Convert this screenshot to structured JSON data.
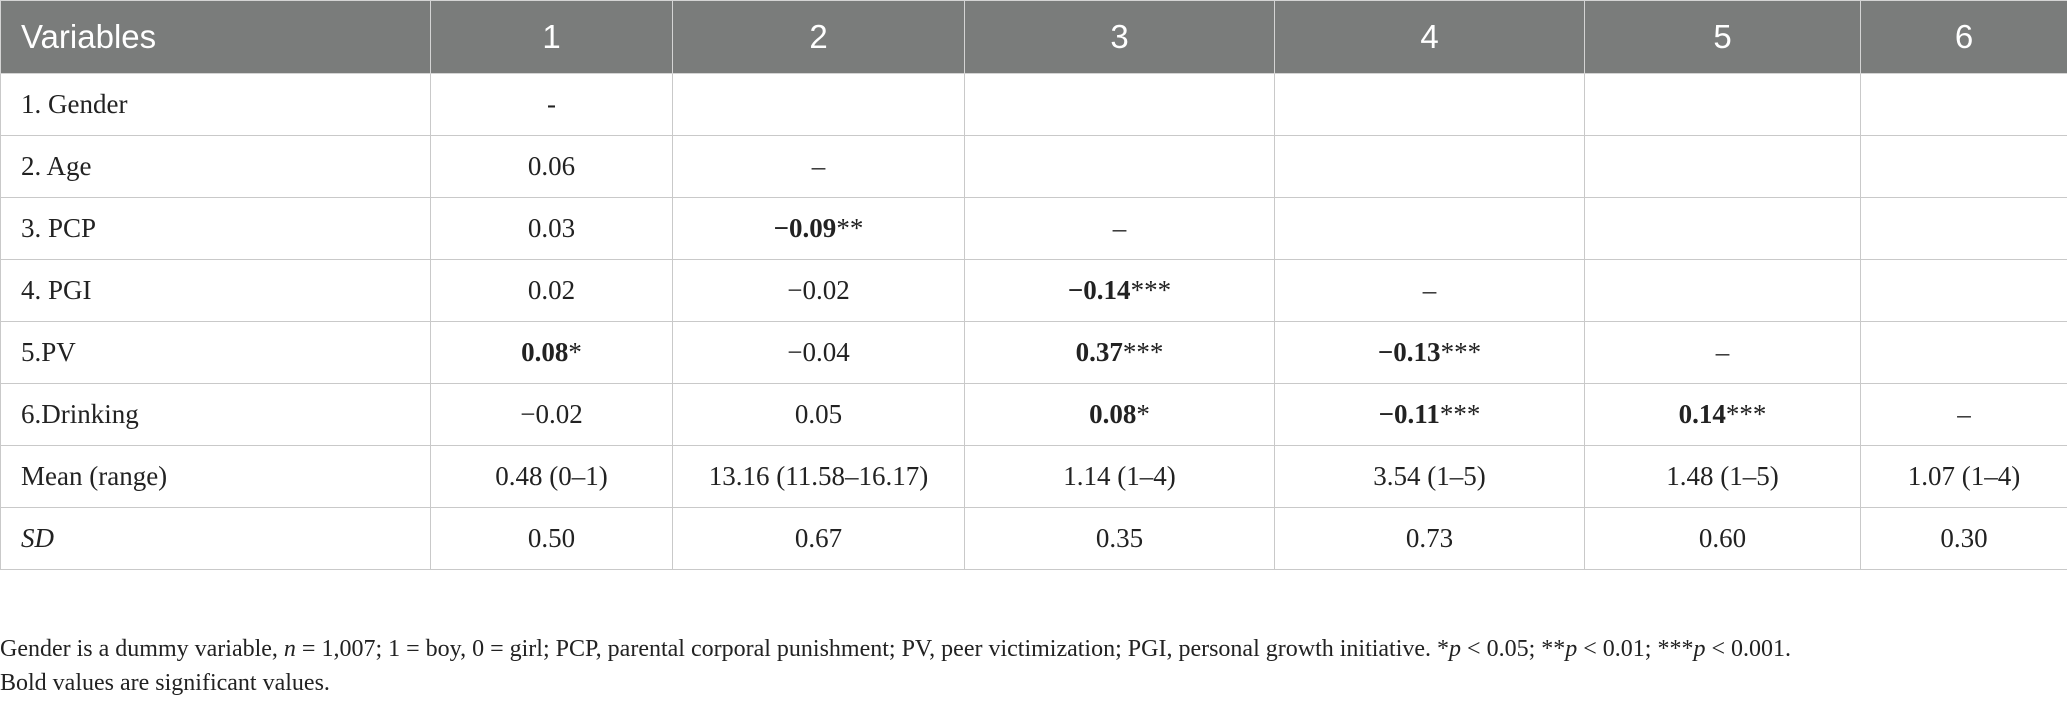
{
  "table": {
    "headers": [
      "Variables",
      "1",
      "2",
      "3",
      "4",
      "5",
      "6"
    ],
    "rows": [
      {
        "label": "1. Gender",
        "cells": [
          {
            "v": "-",
            "sig": "",
            "bold": false
          },
          {
            "v": "",
            "sig": "",
            "bold": false
          },
          {
            "v": "",
            "sig": "",
            "bold": false
          },
          {
            "v": "",
            "sig": "",
            "bold": false
          },
          {
            "v": "",
            "sig": "",
            "bold": false
          },
          {
            "v": "",
            "sig": "",
            "bold": false
          }
        ]
      },
      {
        "label": "2. Age",
        "cells": [
          {
            "v": "0.06",
            "sig": "",
            "bold": false
          },
          {
            "v": "–",
            "sig": "",
            "bold": false
          },
          {
            "v": "",
            "sig": "",
            "bold": false
          },
          {
            "v": "",
            "sig": "",
            "bold": false
          },
          {
            "v": "",
            "sig": "",
            "bold": false
          },
          {
            "v": "",
            "sig": "",
            "bold": false
          }
        ]
      },
      {
        "label": "3. PCP",
        "cells": [
          {
            "v": "0.03",
            "sig": "",
            "bold": false
          },
          {
            "v": "−0.09",
            "sig": "**",
            "bold": true
          },
          {
            "v": "–",
            "sig": "",
            "bold": false
          },
          {
            "v": "",
            "sig": "",
            "bold": false
          },
          {
            "v": "",
            "sig": "",
            "bold": false
          },
          {
            "v": "",
            "sig": "",
            "bold": false
          }
        ]
      },
      {
        "label": "4. PGI",
        "cells": [
          {
            "v": "0.02",
            "sig": "",
            "bold": false
          },
          {
            "v": "−0.02",
            "sig": "",
            "bold": false
          },
          {
            "v": "−0.14",
            "sig": "***",
            "bold": true
          },
          {
            "v": "–",
            "sig": "",
            "bold": false
          },
          {
            "v": "",
            "sig": "",
            "bold": false
          },
          {
            "v": "",
            "sig": "",
            "bold": false
          }
        ]
      },
      {
        "label": "5.PV",
        "cells": [
          {
            "v": "0.08",
            "sig": "*",
            "bold": true
          },
          {
            "v": "−0.04",
            "sig": "",
            "bold": false
          },
          {
            "v": "0.37",
            "sig": "***",
            "bold": true
          },
          {
            "v": "−0.13",
            "sig": "***",
            "bold": true
          },
          {
            "v": "–",
            "sig": "",
            "bold": false
          },
          {
            "v": "",
            "sig": "",
            "bold": false
          }
        ]
      },
      {
        "label": "6.Drinking",
        "cells": [
          {
            "v": "−0.02",
            "sig": "",
            "bold": false
          },
          {
            "v": "0.05",
            "sig": "",
            "bold": false
          },
          {
            "v": "0.08",
            "sig": "*",
            "bold": true
          },
          {
            "v": "−0.11",
            "sig": "***",
            "bold": true
          },
          {
            "v": "0.14",
            "sig": "***",
            "bold": true
          },
          {
            "v": "–",
            "sig": "",
            "bold": false
          }
        ]
      },
      {
        "label": "Mean (range)",
        "cells": [
          {
            "v": "0.48 (0–1)",
            "sig": "",
            "bold": false
          },
          {
            "v": "13.16 (11.58–16.17)",
            "sig": "",
            "bold": false
          },
          {
            "v": "1.14 (1–4)",
            "sig": "",
            "bold": false
          },
          {
            "v": "3.54 (1–5)",
            "sig": "",
            "bold": false
          },
          {
            "v": "1.48 (1–5)",
            "sig": "",
            "bold": false
          },
          {
            "v": "1.07 (1–4)",
            "sig": "",
            "bold": false
          }
        ]
      },
      {
        "label": "SD",
        "italic": true,
        "cells": [
          {
            "v": "0.50",
            "sig": "",
            "bold": false
          },
          {
            "v": "0.67",
            "sig": "",
            "bold": false
          },
          {
            "v": "0.35",
            "sig": "",
            "bold": false
          },
          {
            "v": "0.73",
            "sig": "",
            "bold": false
          },
          {
            "v": "0.60",
            "sig": "",
            "bold": false
          },
          {
            "v": "0.30",
            "sig": "",
            "bold": false
          }
        ]
      }
    ]
  },
  "note": {
    "line1": {
      "t1": "Gender is a dummy variable, ",
      "n_sym": "n",
      "t2": " = 1,007; 1 = boy, 0 = girl; PCP, parental corporal punishment; PV, peer victimization; PGI, personal growth initiative. *",
      "p1": "p",
      "t3": " < 0.05; **",
      "p2": "p",
      "t4": " < 0.01; ***",
      "p3": "p",
      "t5": " < 0.001."
    },
    "line2": "Bold values are significant values."
  },
  "colors": {
    "header_bg": "#7a7c7b",
    "header_text": "#ffffff",
    "border": "#c9c9c9",
    "text": "#222222"
  }
}
